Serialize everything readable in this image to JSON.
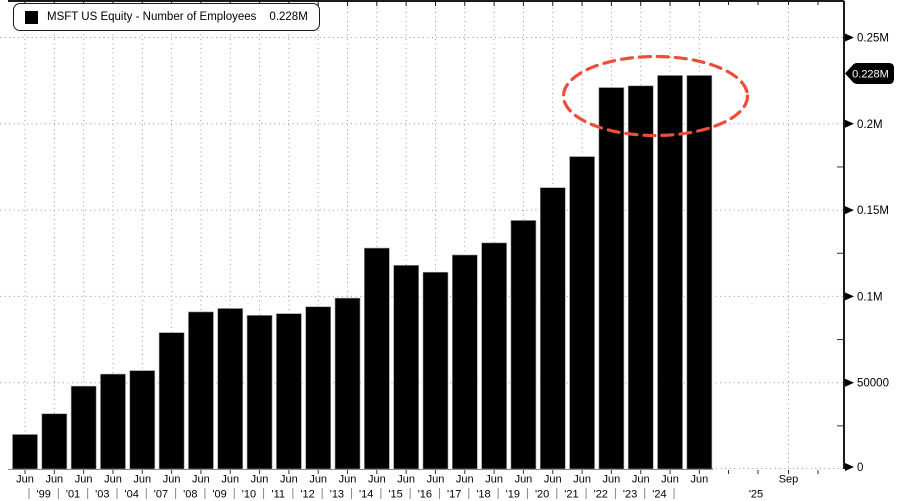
{
  "legend": {
    "label": "MSFT US Equity - Number of Employees",
    "value": "0.228M"
  },
  "y_axis": {
    "ticks": [
      {
        "label": "0",
        "value": 0
      },
      {
        "label": "50000",
        "value": 0.05
      },
      {
        "label": "0.1M",
        "value": 0.1
      },
      {
        "label": "0.15M",
        "value": 0.15
      },
      {
        "label": "0.2M",
        "value": 0.2
      },
      {
        "label": "0.25M",
        "value": 0.25
      }
    ],
    "minor_tick_values": [
      0.025,
      0.075,
      0.125,
      0.175
    ],
    "last_value_badge": "0.228M"
  },
  "x_axis": {
    "month_labels": [
      "Jun",
      "Jun",
      "Jun",
      "Jun",
      "Jun",
      "Jun",
      "Jun",
      "Jun",
      "Jun",
      "Jun",
      "Jun",
      "Jun",
      "Jun",
      "Jun",
      "Jun",
      "Jun",
      "Jun",
      "Jun",
      "Jun",
      "Jun",
      "Jun",
      "Jun",
      "Jun",
      "Jun"
    ],
    "extra_month_label": "Sep",
    "year_labels": [
      "'99",
      "'01",
      "'03",
      "'04",
      "'07",
      "'08",
      "'09",
      "'10",
      "'11",
      "'12",
      "'13",
      "'14",
      "'15",
      "'16",
      "'17",
      "'18",
      "'19",
      "'20",
      "'21",
      "'22",
      "'23",
      "'24"
    ],
    "extra_year_label": "'25"
  },
  "colors": {
    "bar": "#000000",
    "bar_edge": "#999999",
    "grid": "#9a9a9a",
    "frame": "#1a1a1a",
    "tick": "#333333",
    "text": "#000000",
    "ellipse": "#f04c3a",
    "badge_bg": "#000000",
    "badge_text": "#ffffff"
  },
  "chart_data": {
    "type": "bar",
    "title": "MSFT US Equity - Number of Employees",
    "y_unit": "M (millions of employees)",
    "ylim": [
      0,
      0.27
    ],
    "grid": true,
    "legend_position": "top-left",
    "categories": [
      "Jun",
      "Jun '99",
      "Jun '01",
      "Jun '03",
      "Jun '04",
      "Jun '07",
      "Jun '08",
      "Jun '09",
      "Jun '10",
      "Jun '11",
      "Jun '12",
      "Jun '13",
      "Jun '14",
      "Jun '15",
      "Jun '16",
      "Jun '17",
      "Jun '18",
      "Jun '19",
      "Jun '20",
      "Jun '21",
      "Jun '22",
      "Jun '23",
      "Jun '24",
      "Jun '25"
    ],
    "values_millions": [
      0.02,
      0.032,
      0.048,
      0.055,
      0.057,
      0.079,
      0.091,
      0.093,
      0.089,
      0.09,
      0.094,
      0.099,
      0.128,
      0.118,
      0.114,
      0.124,
      0.131,
      0.144,
      0.163,
      0.181,
      0.221,
      0.222,
      0.228,
      0.228
    ],
    "latest_value_label": "0.228M",
    "annotation": {
      "shape": "dashed-ellipse",
      "color": "#f04c3a",
      "around": "last 4 bars (circa 0.221M - 0.228M plateau)"
    }
  }
}
